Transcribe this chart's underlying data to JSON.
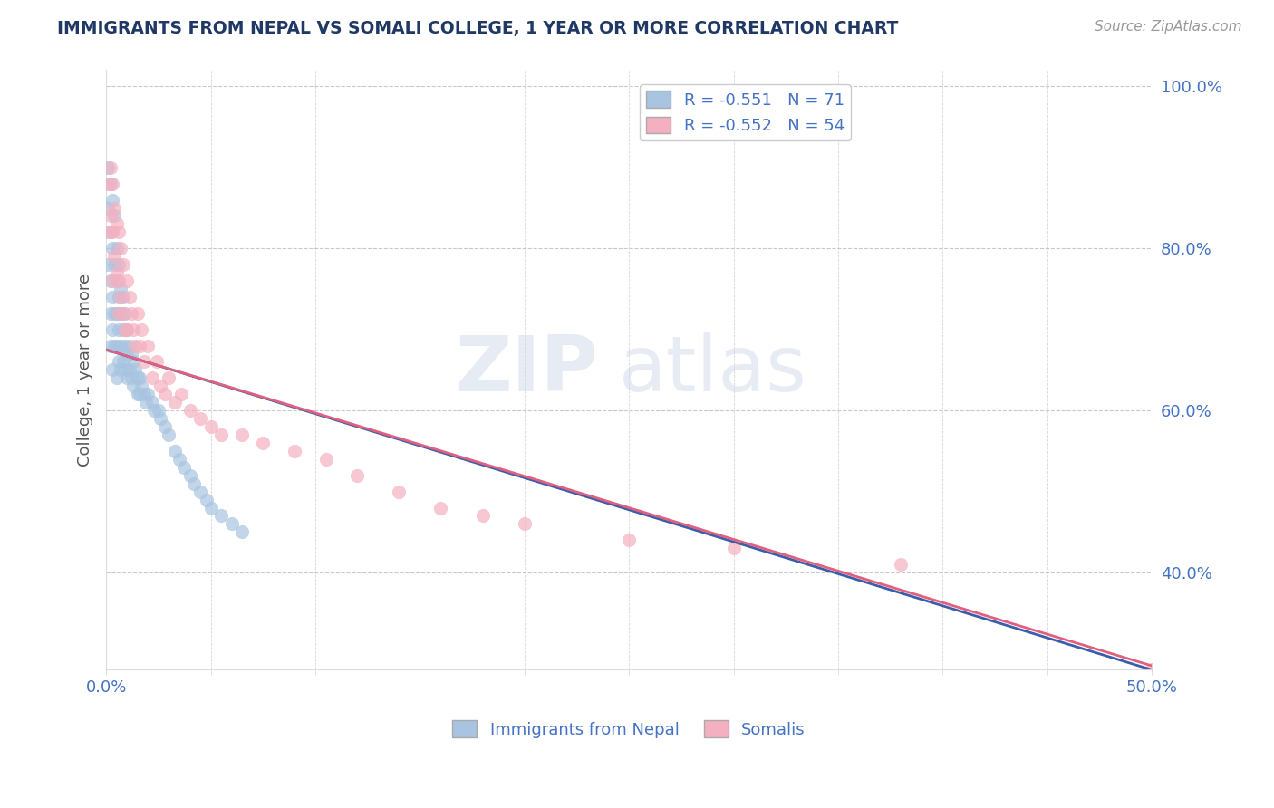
{
  "title": "IMMIGRANTS FROM NEPAL VS SOMALI COLLEGE, 1 YEAR OR MORE CORRELATION CHART",
  "source_text": "Source: ZipAtlas.com",
  "ylabel": "College, 1 year or more",
  "xlim": [
    0.0,
    0.5
  ],
  "ylim": [
    0.28,
    1.02
  ],
  "ytick_labels": [
    "100.0%",
    "80.0%",
    "60.0%",
    "40.0%"
  ],
  "ytick_values": [
    1.0,
    0.8,
    0.6,
    0.4
  ],
  "xtick_labels": [
    "0.0%",
    "50.0%"
  ],
  "xtick_values": [
    0.0,
    0.5
  ],
  "legend_line1": "R = -0.551   N = 71",
  "legend_line2": "R = -0.552   N = 54",
  "legend_label1": "Immigrants from Nepal",
  "legend_label2": "Somalis",
  "nepal_color": "#a8c4e0",
  "somali_color": "#f4b0c0",
  "nepal_line_color": "#3a5eaa",
  "somali_line_color": "#e06080",
  "nepal_R": -0.551,
  "nepal_N": 71,
  "somali_R": -0.552,
  "somali_N": 54,
  "background_color": "#ffffff",
  "watermark_zip": "ZIP",
  "watermark_atlas": "atlas",
  "title_color": "#1f3864",
  "axis_label_color": "#4472c4",
  "tick_label_color": "#4472c4",
  "ylabel_color": "#555555",
  "grid_color": "#bbbbbb",
  "nepal_line_x0": 0.0,
  "nepal_line_y0": 0.675,
  "nepal_line_x1": 0.5,
  "nepal_line_y1": 0.28,
  "somali_line_x0": 0.0,
  "somali_line_y0": 0.675,
  "somali_line_x1": 0.5,
  "somali_line_y1": 0.285,
  "nepal_scatter_x": [
    0.001,
    0.001,
    0.001,
    0.002,
    0.002,
    0.002,
    0.002,
    0.002,
    0.003,
    0.003,
    0.003,
    0.003,
    0.003,
    0.004,
    0.004,
    0.004,
    0.004,
    0.005,
    0.005,
    0.005,
    0.005,
    0.005,
    0.006,
    0.006,
    0.006,
    0.006,
    0.007,
    0.007,
    0.007,
    0.007,
    0.008,
    0.008,
    0.008,
    0.009,
    0.009,
    0.009,
    0.01,
    0.01,
    0.01,
    0.011,
    0.011,
    0.012,
    0.012,
    0.013,
    0.013,
    0.014,
    0.015,
    0.015,
    0.016,
    0.016,
    0.017,
    0.018,
    0.019,
    0.02,
    0.022,
    0.023,
    0.025,
    0.026,
    0.028,
    0.03,
    0.033,
    0.035,
    0.037,
    0.04,
    0.042,
    0.045,
    0.048,
    0.05,
    0.055,
    0.06,
    0.065
  ],
  "nepal_scatter_y": [
    0.85,
    0.9,
    0.78,
    0.88,
    0.82,
    0.76,
    0.72,
    0.68,
    0.86,
    0.8,
    0.74,
    0.7,
    0.65,
    0.84,
    0.78,
    0.72,
    0.68,
    0.8,
    0.76,
    0.72,
    0.68,
    0.64,
    0.78,
    0.74,
    0.7,
    0.66,
    0.75,
    0.72,
    0.68,
    0.65,
    0.74,
    0.7,
    0.66,
    0.72,
    0.68,
    0.65,
    0.7,
    0.67,
    0.64,
    0.68,
    0.65,
    0.67,
    0.64,
    0.66,
    0.63,
    0.65,
    0.64,
    0.62,
    0.64,
    0.62,
    0.63,
    0.62,
    0.61,
    0.62,
    0.61,
    0.6,
    0.6,
    0.59,
    0.58,
    0.57,
    0.55,
    0.54,
    0.53,
    0.52,
    0.51,
    0.5,
    0.49,
    0.48,
    0.47,
    0.46,
    0.45
  ],
  "somali_scatter_x": [
    0.001,
    0.001,
    0.002,
    0.002,
    0.003,
    0.003,
    0.003,
    0.004,
    0.004,
    0.005,
    0.005,
    0.006,
    0.006,
    0.006,
    0.007,
    0.007,
    0.008,
    0.008,
    0.009,
    0.01,
    0.01,
    0.011,
    0.012,
    0.013,
    0.014,
    0.015,
    0.016,
    0.017,
    0.018,
    0.02,
    0.022,
    0.024,
    0.026,
    0.028,
    0.03,
    0.033,
    0.036,
    0.04,
    0.045,
    0.05,
    0.055,
    0.065,
    0.075,
    0.09,
    0.105,
    0.12,
    0.14,
    0.16,
    0.18,
    0.2,
    0.25,
    0.3,
    0.38,
    0.5
  ],
  "somali_scatter_y": [
    0.88,
    0.82,
    0.9,
    0.84,
    0.88,
    0.82,
    0.76,
    0.85,
    0.79,
    0.83,
    0.77,
    0.82,
    0.76,
    0.72,
    0.8,
    0.74,
    0.78,
    0.72,
    0.7,
    0.76,
    0.7,
    0.74,
    0.72,
    0.7,
    0.68,
    0.72,
    0.68,
    0.7,
    0.66,
    0.68,
    0.64,
    0.66,
    0.63,
    0.62,
    0.64,
    0.61,
    0.62,
    0.6,
    0.59,
    0.58,
    0.57,
    0.57,
    0.56,
    0.55,
    0.54,
    0.52,
    0.5,
    0.48,
    0.47,
    0.46,
    0.44,
    0.43,
    0.41,
    0.28
  ]
}
